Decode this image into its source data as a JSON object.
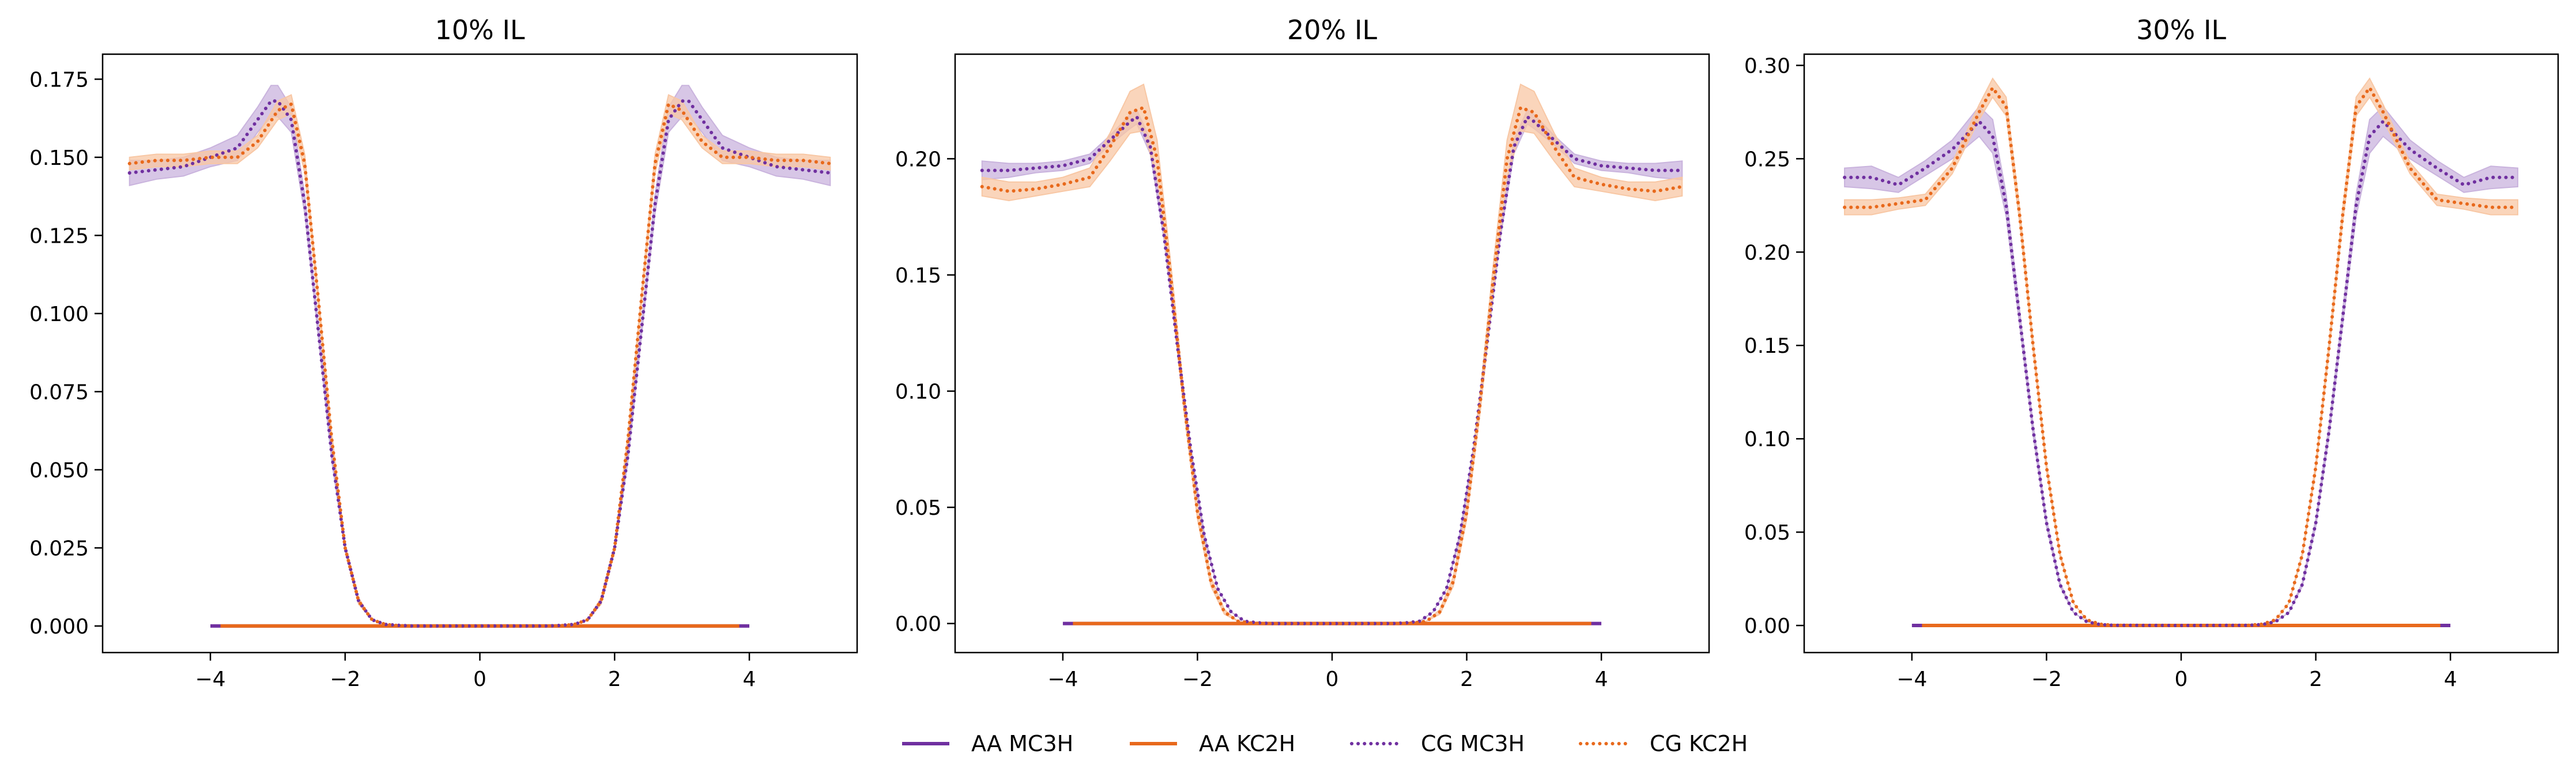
{
  "colors": {
    "mc3h": "#7030a0",
    "kc2h": "#e8691c",
    "mc3h_fill": "#c9b3dd",
    "kc2h_fill": "#f8c7a4"
  },
  "legend": [
    {
      "label": "AA MC3H",
      "style": "solid",
      "color_key": "mc3h"
    },
    {
      "label": "AA KC2H",
      "style": "solid",
      "color_key": "kc2h"
    },
    {
      "label": "CG MC3H",
      "style": "dotted",
      "color_key": "mc3h"
    },
    {
      "label": "CG KC2H",
      "style": "dotted",
      "color_key": "kc2h"
    }
  ],
  "chart_data": [
    {
      "type": "line",
      "title": "10% IL",
      "xlabel": "",
      "ylabel": "",
      "xlim": [
        -5.6,
        5.6
      ],
      "ylim": [
        -0.0085,
        0.183
      ],
      "xticks": [
        -4,
        -2,
        0,
        2,
        4
      ],
      "xtick_labels": [
        "−4",
        "−2",
        "0",
        "2",
        "4"
      ],
      "yticks": [
        0.0,
        0.025,
        0.05,
        0.075,
        0.1,
        0.125,
        0.15,
        0.175
      ],
      "ytick_labels": [
        "0.000",
        "0.025",
        "0.050",
        "0.075",
        "0.100",
        "0.125",
        "0.150",
        "0.175"
      ],
      "grid": false,
      "series": [
        {
          "name": "AA MC3H",
          "style": "solid",
          "color_key": "mc3h",
          "x": [
            -4,
            4
          ],
          "y": [
            0.0,
            0.0
          ]
        },
        {
          "name": "AA KC2H",
          "style": "solid",
          "color_key": "kc2h",
          "x": [
            -3.85,
            3.85
          ],
          "y": [
            0.0,
            0.0
          ]
        },
        {
          "name": "CG MC3H",
          "style": "dotted",
          "color_key": "mc3h",
          "x": [
            -5.2,
            -4.8,
            -4.4,
            -4.0,
            -3.6,
            -3.3,
            -3.1,
            -3.0,
            -2.8,
            -2.6,
            -2.4,
            -2.2,
            -2.0,
            -1.8,
            -1.6,
            -1.4,
            -1.2,
            -1.0,
            0.0,
            1.0,
            1.2,
            1.4,
            1.6,
            1.8,
            2.0,
            2.2,
            2.4,
            2.6,
            2.8,
            3.0,
            3.1,
            3.3,
            3.6,
            4.0,
            4.4,
            4.8,
            5.2
          ],
          "y": [
            0.145,
            0.146,
            0.147,
            0.15,
            0.153,
            0.162,
            0.168,
            0.168,
            0.162,
            0.135,
            0.095,
            0.055,
            0.025,
            0.008,
            0.002,
            0.0005,
            0.0002,
            0.0,
            0.0,
            0.0,
            0.0002,
            0.0005,
            0.002,
            0.008,
            0.025,
            0.055,
            0.095,
            0.135,
            0.162,
            0.168,
            0.168,
            0.162,
            0.153,
            0.15,
            0.147,
            0.146,
            0.145
          ],
          "band": [
            0.004,
            0.003,
            0.003,
            0.003,
            0.004,
            0.004,
            0.005,
            0.005,
            0.004,
            0.003,
            0.002,
            0.002,
            0.001,
            0.001,
            0.0,
            0.0,
            0.0,
            0.0,
            0.0,
            0.0,
            0.0,
            0.0,
            0.0,
            0.001,
            0.001,
            0.002,
            0.002,
            0.003,
            0.004,
            0.005,
            0.005,
            0.004,
            0.004,
            0.003,
            0.003,
            0.003,
            0.004
          ]
        },
        {
          "name": "CG KC2H",
          "style": "dotted",
          "color_key": "kc2h",
          "x": [
            -5.2,
            -4.8,
            -4.4,
            -4.0,
            -3.6,
            -3.3,
            -3.0,
            -2.8,
            -2.6,
            -2.4,
            -2.2,
            -2.0,
            -1.8,
            -1.6,
            -1.4,
            -1.2,
            -1.0,
            0.0,
            1.0,
            1.2,
            1.4,
            1.6,
            1.8,
            2.0,
            2.2,
            2.4,
            2.6,
            2.8,
            3.0,
            3.3,
            3.6,
            4.0,
            4.4,
            4.8,
            5.2
          ],
          "y": [
            0.148,
            0.149,
            0.149,
            0.15,
            0.15,
            0.155,
            0.165,
            0.167,
            0.148,
            0.105,
            0.06,
            0.025,
            0.008,
            0.002,
            0.0005,
            0.0001,
            0.0,
            0.0,
            0.0,
            0.0001,
            0.0005,
            0.002,
            0.008,
            0.025,
            0.06,
            0.105,
            0.148,
            0.167,
            0.165,
            0.155,
            0.15,
            0.15,
            0.149,
            0.149,
            0.148
          ],
          "band": [
            0.002,
            0.002,
            0.002,
            0.002,
            0.002,
            0.002,
            0.003,
            0.003,
            0.003,
            0.002,
            0.002,
            0.001,
            0.001,
            0.0,
            0.0,
            0.0,
            0.0,
            0.0,
            0.0,
            0.0,
            0.0,
            0.0,
            0.001,
            0.001,
            0.002,
            0.002,
            0.003,
            0.003,
            0.003,
            0.002,
            0.002,
            0.002,
            0.002,
            0.002,
            0.002
          ]
        }
      ]
    },
    {
      "type": "line",
      "title": "20% IL",
      "xlabel": "",
      "ylabel": "",
      "xlim": [
        -5.6,
        5.6
      ],
      "ylim": [
        -0.0125,
        0.245
      ],
      "xticks": [
        -4,
        -2,
        0,
        2,
        4
      ],
      "xtick_labels": [
        "−4",
        "−2",
        "0",
        "2",
        "4"
      ],
      "yticks": [
        0.0,
        0.05,
        0.1,
        0.15,
        0.2
      ],
      "ytick_labels": [
        "0.00",
        "0.05",
        "0.10",
        "0.15",
        "0.20"
      ],
      "grid": false,
      "series": [
        {
          "name": "AA MC3H",
          "style": "solid",
          "color_key": "mc3h",
          "x": [
            -4,
            4
          ],
          "y": [
            0.0,
            0.0
          ]
        },
        {
          "name": "AA KC2H",
          "style": "solid",
          "color_key": "kc2h",
          "x": [
            -3.85,
            3.85
          ],
          "y": [
            0.0,
            0.0
          ]
        },
        {
          "name": "CG MC3H",
          "style": "dotted",
          "color_key": "mc3h",
          "x": [
            -5.2,
            -4.8,
            -4.4,
            -4.0,
            -3.6,
            -3.3,
            -3.0,
            -2.9,
            -2.7,
            -2.5,
            -2.3,
            -2.1,
            -1.9,
            -1.7,
            -1.5,
            -1.3,
            -1.1,
            -0.9,
            0.0,
            0.9,
            1.1,
            1.3,
            1.5,
            1.7,
            1.9,
            2.1,
            2.3,
            2.5,
            2.7,
            2.9,
            3.0,
            3.3,
            3.6,
            4.0,
            4.4,
            4.8,
            5.2
          ],
          "y": [
            0.195,
            0.195,
            0.196,
            0.197,
            0.2,
            0.208,
            0.216,
            0.218,
            0.205,
            0.168,
            0.12,
            0.075,
            0.038,
            0.015,
            0.005,
            0.001,
            0.0003,
            0.0,
            0.0,
            0.0,
            0.0003,
            0.001,
            0.005,
            0.015,
            0.038,
            0.075,
            0.12,
            0.168,
            0.205,
            0.218,
            0.216,
            0.208,
            0.2,
            0.197,
            0.196,
            0.195,
            0.195
          ],
          "band": [
            0.004,
            0.003,
            0.002,
            0.002,
            0.002,
            0.002,
            0.003,
            0.003,
            0.003,
            0.002,
            0.002,
            0.001,
            0.001,
            0.0,
            0.0,
            0.0,
            0.0,
            0.0,
            0.0,
            0.0,
            0.0,
            0.0,
            0.0,
            0.0,
            0.001,
            0.001,
            0.002,
            0.002,
            0.003,
            0.003,
            0.003,
            0.002,
            0.002,
            0.002,
            0.002,
            0.003,
            0.004
          ]
        },
        {
          "name": "CG KC2H",
          "style": "dotted",
          "color_key": "kc2h",
          "x": [
            -5.2,
            -4.8,
            -4.4,
            -4.0,
            -3.6,
            -3.3,
            -3.0,
            -2.8,
            -2.6,
            -2.4,
            -2.2,
            -2.0,
            -1.8,
            -1.6,
            -1.4,
            -1.2,
            -1.0,
            0.0,
            1.0,
            1.2,
            1.4,
            1.6,
            1.8,
            2.0,
            2.2,
            2.4,
            2.6,
            2.8,
            3.0,
            3.3,
            3.6,
            4.0,
            4.4,
            4.8,
            5.2
          ],
          "y": [
            0.188,
            0.186,
            0.187,
            0.189,
            0.192,
            0.205,
            0.22,
            0.222,
            0.2,
            0.15,
            0.095,
            0.048,
            0.018,
            0.005,
            0.001,
            0.0002,
            0.0,
            0.0,
            0.0,
            0.0002,
            0.001,
            0.005,
            0.018,
            0.048,
            0.095,
            0.15,
            0.2,
            0.222,
            0.22,
            0.205,
            0.192,
            0.189,
            0.187,
            0.186,
            0.188
          ],
          "band": [
            0.004,
            0.004,
            0.003,
            0.003,
            0.004,
            0.006,
            0.009,
            0.01,
            0.008,
            0.006,
            0.004,
            0.003,
            0.002,
            0.001,
            0.0,
            0.0,
            0.0,
            0.0,
            0.0,
            0.0,
            0.0,
            0.001,
            0.002,
            0.003,
            0.004,
            0.006,
            0.008,
            0.01,
            0.009,
            0.006,
            0.004,
            0.003,
            0.003,
            0.004,
            0.004
          ]
        }
      ]
    },
    {
      "type": "line",
      "title": "30% IL",
      "xlabel": "",
      "ylabel": "",
      "xlim": [
        -5.6,
        5.6
      ],
      "ylim": [
        -0.0145,
        0.306
      ],
      "xticks": [
        -4,
        -2,
        0,
        2,
        4
      ],
      "xtick_labels": [
        "−4",
        "−2",
        "0",
        "2",
        "4"
      ],
      "yticks": [
        0.0,
        0.05,
        0.1,
        0.15,
        0.2,
        0.25,
        0.3
      ],
      "ytick_labels": [
        "0.00",
        "0.05",
        "0.10",
        "0.15",
        "0.20",
        "0.25",
        "0.30"
      ],
      "grid": false,
      "series": [
        {
          "name": "AA MC3H",
          "style": "solid",
          "color_key": "mc3h",
          "x": [
            -4,
            4
          ],
          "y": [
            0.0,
            0.0
          ]
        },
        {
          "name": "AA KC2H",
          "style": "solid",
          "color_key": "kc2h",
          "x": [
            -3.85,
            3.85
          ],
          "y": [
            0.0,
            0.0
          ]
        },
        {
          "name": "CG MC3H",
          "style": "dotted",
          "color_key": "mc3h",
          "x": [
            -5.0,
            -4.6,
            -4.2,
            -3.8,
            -3.4,
            -3.0,
            -2.8,
            -2.6,
            -2.4,
            -2.2,
            -2.0,
            -1.8,
            -1.6,
            -1.4,
            -1.2,
            -1.0,
            0.0,
            1.0,
            1.2,
            1.4,
            1.6,
            1.8,
            2.0,
            2.2,
            2.4,
            2.6,
            2.8,
            3.0,
            3.4,
            3.8,
            4.2,
            4.6,
            5.0
          ],
          "y": [
            0.24,
            0.24,
            0.236,
            0.245,
            0.255,
            0.27,
            0.262,
            0.225,
            0.165,
            0.105,
            0.055,
            0.022,
            0.007,
            0.002,
            0.0005,
            0.0001,
            0.0,
            0.0001,
            0.0005,
            0.002,
            0.007,
            0.022,
            0.055,
            0.105,
            0.165,
            0.225,
            0.262,
            0.27,
            0.255,
            0.245,
            0.236,
            0.24,
            0.24
          ],
          "band": [
            0.005,
            0.006,
            0.004,
            0.004,
            0.005,
            0.008,
            0.009,
            0.006,
            0.004,
            0.003,
            0.002,
            0.001,
            0.0,
            0.0,
            0.0,
            0.0,
            0.0,
            0.0,
            0.0,
            0.0,
            0.0,
            0.001,
            0.002,
            0.003,
            0.004,
            0.006,
            0.009,
            0.008,
            0.005,
            0.004,
            0.004,
            0.006,
            0.005
          ]
        },
        {
          "name": "CG KC2H",
          "style": "dotted",
          "color_key": "kc2h",
          "x": [
            -5.0,
            -4.6,
            -4.2,
            -3.8,
            -3.4,
            -3.0,
            -2.8,
            -2.6,
            -2.4,
            -2.2,
            -2.0,
            -1.8,
            -1.6,
            -1.4,
            -1.2,
            -1.0,
            0.0,
            1.0,
            1.2,
            1.4,
            1.6,
            1.8,
            2.0,
            2.2,
            2.4,
            2.6,
            2.8,
            3.0,
            3.4,
            3.8,
            4.2,
            4.6,
            5.0
          ],
          "y": [
            0.224,
            0.224,
            0.226,
            0.228,
            0.245,
            0.275,
            0.288,
            0.278,
            0.22,
            0.15,
            0.085,
            0.038,
            0.012,
            0.003,
            0.0007,
            0.0001,
            0.0,
            0.0001,
            0.0007,
            0.003,
            0.012,
            0.038,
            0.085,
            0.15,
            0.22,
            0.278,
            0.288,
            0.275,
            0.245,
            0.228,
            0.226,
            0.224,
            0.224
          ],
          "band": [
            0.004,
            0.004,
            0.003,
            0.003,
            0.003,
            0.004,
            0.005,
            0.005,
            0.004,
            0.003,
            0.002,
            0.001,
            0.0,
            0.0,
            0.0,
            0.0,
            0.0,
            0.0,
            0.0,
            0.0,
            0.0,
            0.001,
            0.002,
            0.003,
            0.004,
            0.005,
            0.005,
            0.004,
            0.003,
            0.003,
            0.003,
            0.004,
            0.004
          ]
        }
      ]
    }
  ]
}
